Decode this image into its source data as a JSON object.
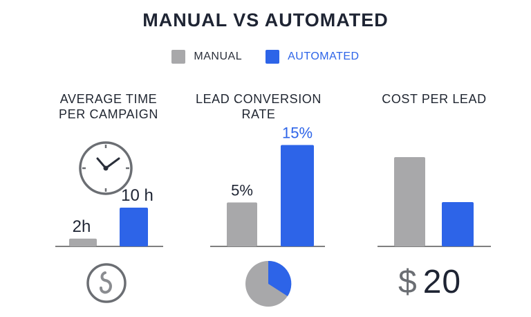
{
  "title": "MANUAL VS  AUTOMATED",
  "legend": {
    "manual": "MANUAL",
    "automated": "AUTOMATED"
  },
  "colors": {
    "manual": "#a8a8aa",
    "automated": "#2d64e8",
    "axis": "#555555",
    "text": "#1e2433"
  },
  "chart_data": [
    {
      "type": "bar",
      "title": "AVERAGE TIME PER CAMPAIGN",
      "categories": [
        "MANUAL",
        "AUTOMATED"
      ],
      "values": [
        2,
        10
      ],
      "value_labels": [
        "2h",
        "10 h"
      ],
      "icons": [
        "clock-icon",
        "circular-arrow-icon"
      ]
    },
    {
      "type": "bar",
      "title": "LEAD CONVERSION RATE",
      "categories": [
        "MANUAL",
        "AUTOMATED"
      ],
      "values": [
        5,
        15
      ],
      "value_labels": [
        "5%",
        "15%"
      ],
      "icons": [
        "pie-chart-icon"
      ]
    },
    {
      "type": "bar",
      "title": "COST PER LEAD",
      "categories": [
        "MANUAL",
        "AUTOMATED"
      ],
      "values": [
        null,
        null
      ],
      "value_labels": [
        "",
        ""
      ],
      "note": "$ 20",
      "icons": [
        "dollar-icon"
      ]
    }
  ],
  "panels": {
    "time": {
      "title_line1": "AVERAGE TIME",
      "title_line2": "PER CAMPAIGN"
    },
    "conversion": {
      "title_line1": "LEAD CONVERSION",
      "title_line2": "RATE"
    },
    "cost": {
      "title_line1": "COST PER LEAD",
      "symbol": "$",
      "amount": "20"
    }
  }
}
